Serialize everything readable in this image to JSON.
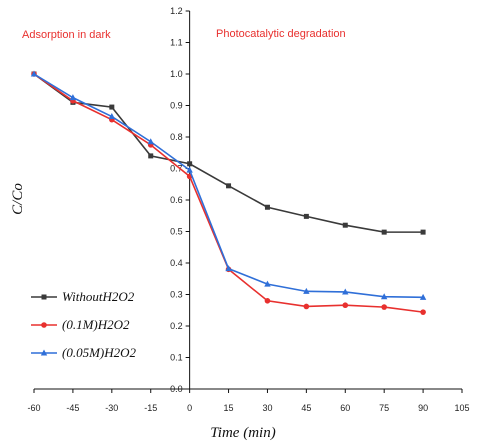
{
  "chart_data": {
    "type": "line",
    "xlabel": "Time (min)",
    "ylabel": "C/Co",
    "xlim": [
      -60,
      105
    ],
    "ylim": [
      0.0,
      1.2
    ],
    "xticks": [
      -60,
      -45,
      -30,
      -15,
      0,
      15,
      30,
      45,
      60,
      75,
      90,
      105
    ],
    "yticks": [
      "0.0",
      "0.1",
      "0.2",
      "0.3",
      "0.4",
      "0.5",
      "0.6",
      "0.7",
      "0.8",
      "0.9",
      "1.0",
      "1.1",
      "1.2"
    ],
    "annotations": [
      "Adsorption in dark",
      "Photocatalytic degradation"
    ],
    "legend_position": "left-bottom",
    "series": [
      {
        "name": "WithoutH2O2",
        "color": "#3a3a3a",
        "marker": "square",
        "x": [
          -60,
          -45,
          -30,
          -15,
          0,
          15,
          30,
          45,
          60,
          75,
          90
        ],
        "y": [
          1.0,
          0.91,
          0.895,
          0.74,
          0.715,
          0.645,
          0.577,
          0.548,
          0.52,
          0.498,
          0.498
        ]
      },
      {
        "name": "(0.1M)H2O2",
        "color": "#e8302e",
        "marker": "circle",
        "x": [
          -60,
          -45,
          -30,
          -15,
          0,
          15,
          30,
          45,
          60,
          75,
          90
        ],
        "y": [
          1.0,
          0.915,
          0.855,
          0.775,
          0.675,
          0.38,
          0.28,
          0.262,
          0.266,
          0.26,
          0.244
        ]
      },
      {
        "name": "(0.05M)H2O2",
        "color": "#2f6fd8",
        "marker": "triangle",
        "x": [
          -60,
          -45,
          -30,
          -15,
          0,
          15,
          30,
          45,
          60,
          75,
          90
        ],
        "y": [
          1.0,
          0.925,
          0.865,
          0.785,
          0.695,
          0.382,
          0.333,
          0.31,
          0.308,
          0.293,
          0.291
        ]
      }
    ]
  }
}
